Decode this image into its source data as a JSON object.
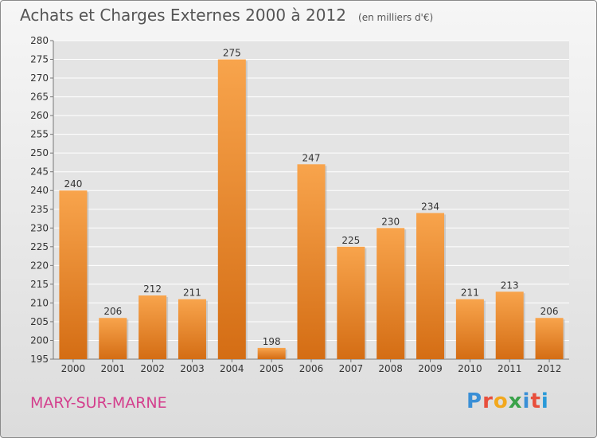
{
  "header": {
    "title": "Achats et Charges Externes 2000 à 2012",
    "unit": "(en milliers d'€)"
  },
  "footer": {
    "city": "MARY-SUR-MARNE",
    "brand": "Proxiti",
    "brand_colors": [
      "#3a8fd6",
      "#e84f3c",
      "#f2a81d",
      "#3aa24a",
      "#3a8fd6",
      "#e84f3c",
      "#2a9ad8"
    ]
  },
  "colors": {
    "bar_light": "#f8a44c",
    "bar_dark": "#d46d14",
    "grid": "#ffffff"
  },
  "chart_data": {
    "type": "bar",
    "title": "Achats et Charges Externes 2000 à 2012",
    "categories": [
      "2000",
      "2001",
      "2002",
      "2003",
      "2004",
      "2005",
      "2006",
      "2007",
      "2008",
      "2009",
      "2010",
      "2011",
      "2012"
    ],
    "values": [
      240,
      206,
      212,
      211,
      275,
      198,
      247,
      225,
      230,
      234,
      211,
      213,
      206
    ],
    "ylim": [
      195,
      280
    ],
    "yticks": [
      195,
      200,
      205,
      210,
      215,
      220,
      225,
      230,
      235,
      240,
      245,
      250,
      255,
      260,
      265,
      270,
      275,
      280
    ],
    "grid": true,
    "data_labels": true
  }
}
